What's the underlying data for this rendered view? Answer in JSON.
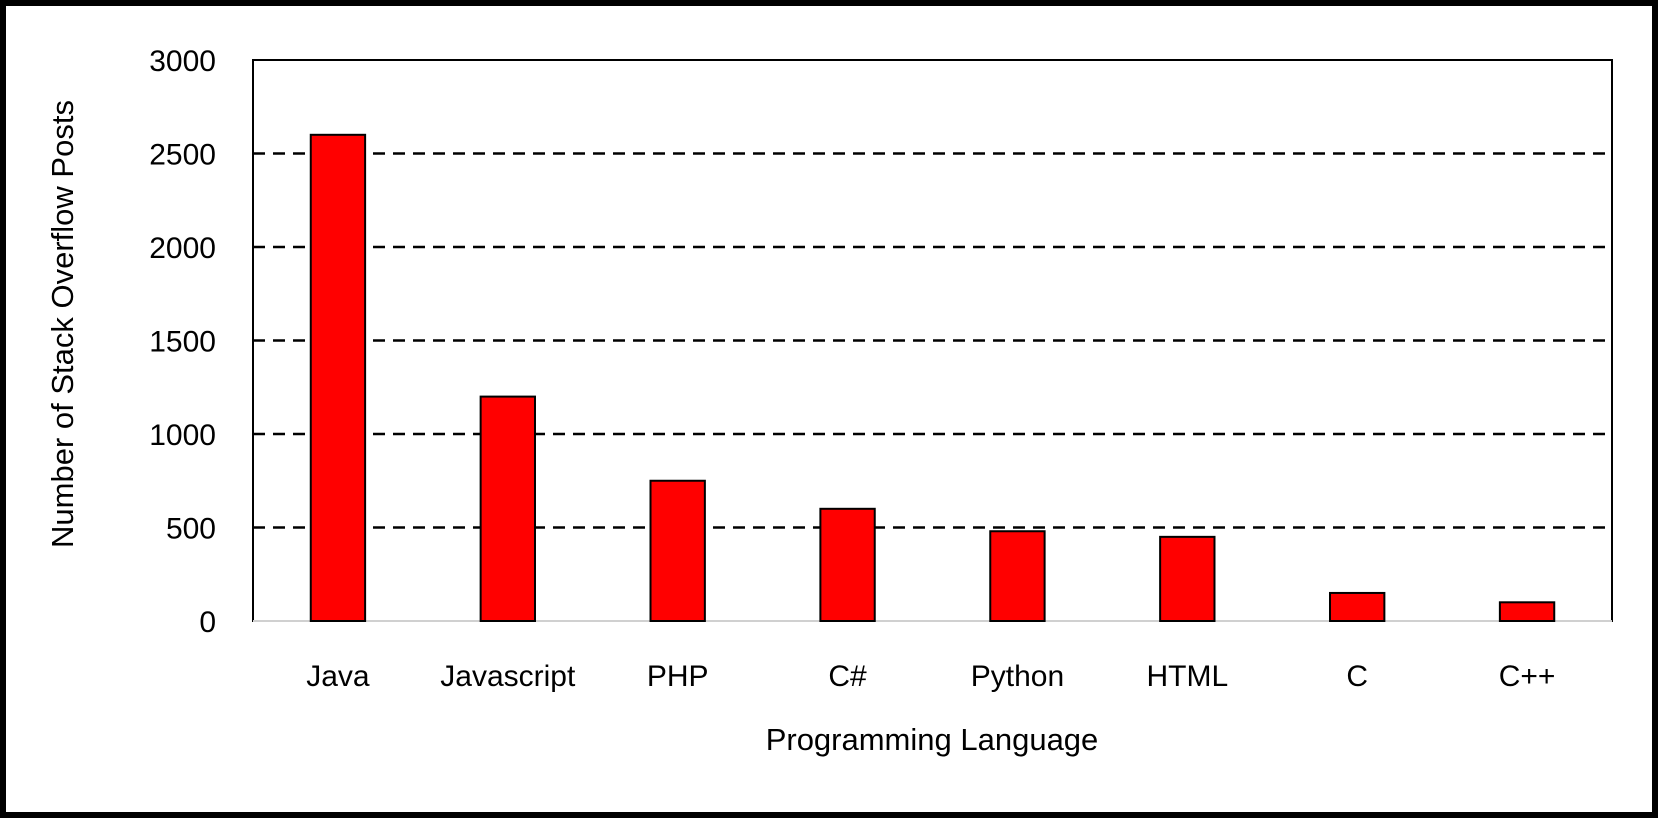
{
  "chart_data": {
    "type": "bar",
    "categories": [
      "Java",
      "Javascript",
      "PHP",
      "C#",
      "Python",
      "HTML",
      "C",
      "C++"
    ],
    "values": [
      2600,
      1200,
      750,
      600,
      480,
      450,
      150,
      100
    ],
    "xlabel": "Programming Language",
    "ylabel": "Number of Stack Overflow Posts",
    "ylim": [
      0,
      3000
    ],
    "yticks": [
      0,
      500,
      1000,
      1500,
      2000,
      2500,
      3000
    ],
    "grid": "horizontal dashed",
    "legend": "none",
    "colors": {
      "bar_fill": "#ff0000",
      "bar_stroke": "#000000",
      "grid": "#000000",
      "frame": "#000000"
    }
  }
}
